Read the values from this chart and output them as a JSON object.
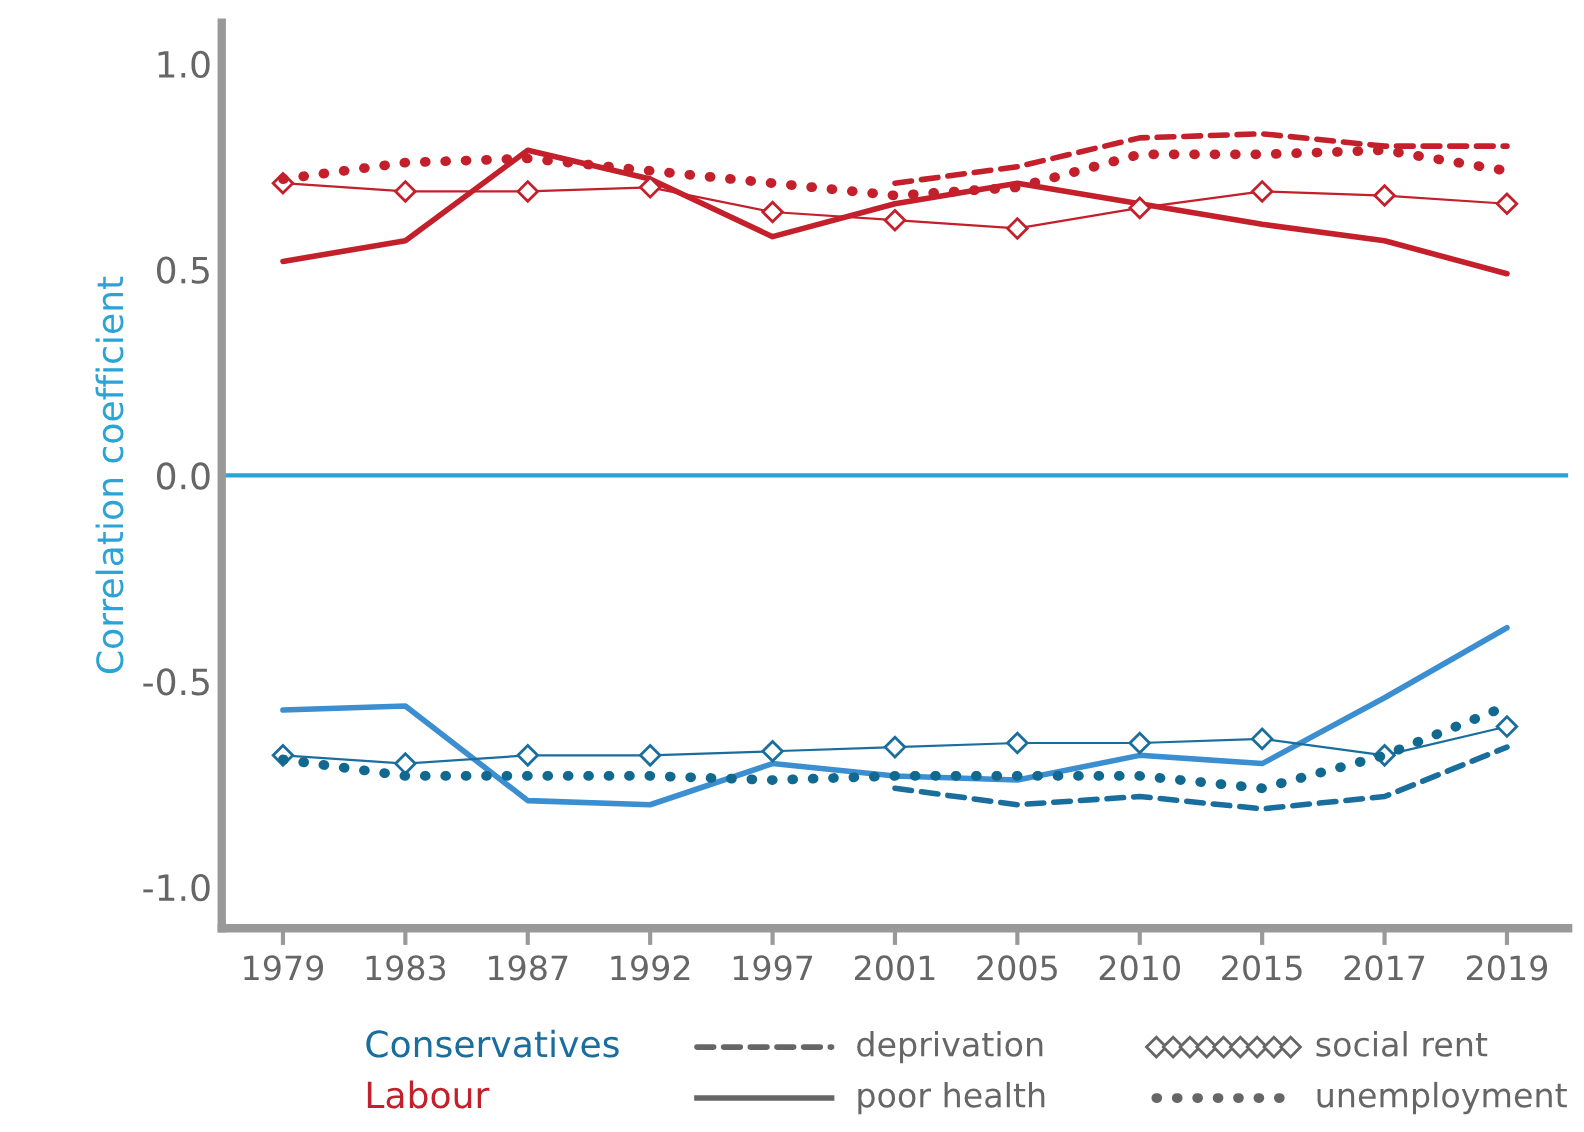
{
  "chart_data": {
    "type": "line",
    "ylabel": "Correlation coefficient",
    "categories": [
      "1979",
      "1983",
      "1987",
      "1992",
      "1997",
      "2001",
      "2005",
      "2010",
      "2015",
      "2017",
      "2019"
    ],
    "series": [
      {
        "color": "#1a6e9e",
        "line_style": "dashed",
        "marker": "none",
        "values": [
          null,
          null,
          null,
          null,
          null,
          -0.76,
          -0.8,
          -0.78,
          -0.81,
          -0.78,
          -0.66
        ]
      },
      {
        "color": "#3b8fd1",
        "line_style": "solid",
        "marker": "none",
        "values": [
          -0.57,
          -0.56,
          -0.79,
          -0.8,
          -0.7,
          -0.73,
          -0.74,
          -0.68,
          -0.7,
          -0.54,
          -0.37
        ]
      },
      {
        "color": "#1a6e9e",
        "line_style": "solid",
        "marker": "diamond",
        "values": [
          -0.68,
          -0.7,
          -0.68,
          -0.68,
          -0.67,
          -0.66,
          -0.65,
          -0.65,
          -0.64,
          -0.68,
          -0.61
        ]
      },
      {
        "color": "#12698f",
        "line_style": "dotted",
        "marker": "none",
        "values": [
          -0.69,
          -0.73,
          -0.73,
          -0.73,
          -0.74,
          -0.73,
          -0.73,
          -0.73,
          -0.76,
          -0.68,
          -0.56
        ]
      },
      {
        "color": "#c4202b",
        "line_style": "dashed",
        "marker": "none",
        "values": [
          null,
          null,
          null,
          null,
          null,
          0.71,
          0.75,
          0.82,
          0.83,
          0.8,
          0.8
        ]
      },
      {
        "color": "#c4202b",
        "line_style": "solid",
        "marker": "none",
        "values": [
          0.52,
          0.57,
          0.79,
          0.72,
          0.58,
          0.66,
          0.71,
          0.66,
          0.61,
          0.57,
          0.49
        ]
      },
      {
        "color": "#c4202b",
        "line_style": "solid",
        "marker": "diamond",
        "values": [
          0.71,
          0.69,
          0.69,
          0.7,
          0.64,
          0.62,
          0.6,
          0.65,
          0.69,
          0.68,
          0.66
        ]
      },
      {
        "color": "#c4202b",
        "line_style": "dotted",
        "marker": "none",
        "values": [
          0.72,
          0.76,
          0.77,
          0.74,
          0.71,
          0.68,
          0.7,
          0.78,
          0.78,
          0.79,
          0.74
        ]
      }
    ],
    "ylim": [
      -1.1,
      1.1
    ],
    "yticks": [
      {
        "value": -1.0,
        "label": "-1.0"
      },
      {
        "value": -0.5,
        "label": "-0.5"
      },
      {
        "value": 0.0,
        "label": "0.0"
      },
      {
        "value": 0.5,
        "label": "0.5"
      },
      {
        "value": 1.0,
        "label": "1.0"
      }
    ],
    "ref_lines": [
      {
        "axis": "y",
        "value": 0,
        "label": null,
        "color": "#2aa3d6"
      }
    ],
    "annotations": [
      "Conservatives",
      "Labour",
      "deprivation",
      "poor health",
      "social rent",
      "unemployment"
    ],
    "grid": false
  }
}
